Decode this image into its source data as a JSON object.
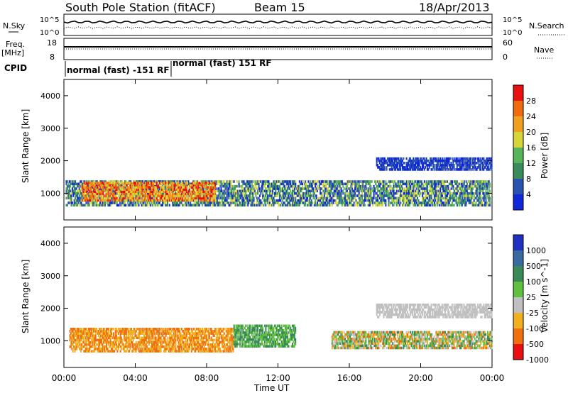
{
  "header": {
    "title": "South Pole Station (fitACF)",
    "beam": "Beam 15",
    "date": "18/Apr/2013"
  },
  "top_panels": {
    "nsky_label": "N.Sky",
    "nsearch_label": "N.Search",
    "nsky_ticks": [
      "10^5",
      "10^0"
    ],
    "nsearch_ticks": [
      "10^5",
      "10^0"
    ],
    "freq_label_1": "Freq.",
    "freq_label_2": "[MHz]",
    "freq_ticks": [
      "18",
      "8"
    ],
    "nave_label": "Nave",
    "nave_ticks": [
      "60",
      "0"
    ],
    "cpid_label": "CPID",
    "cpid_segments": [
      "normal (fast) -151 RF",
      "normal (fast) 151 RF"
    ]
  },
  "chart_data": [
    {
      "type": "heatmap",
      "name": "power",
      "ylabel": "Slant Range [km]",
      "ylim": [
        180,
        4500
      ],
      "yticks": [
        "1000",
        "2000",
        "3000",
        "4000"
      ],
      "xlim": [
        0,
        24
      ],
      "colorbar_label": "Power [dB]",
      "colorbar_ticks": [
        "4",
        "8",
        "12",
        "16",
        "20",
        "24",
        "28"
      ],
      "colorbar_colors": [
        "#1028d8",
        "#2a53b0",
        "#3b8a5c",
        "#58b45a",
        "#d6d63a",
        "#f0a020",
        "#f06a10",
        "#e81010"
      ],
      "regions": [
        {
          "x": [
            0.1,
            23.9
          ],
          "y": [
            600,
            1400
          ],
          "level": "low-to-mid power band"
        },
        {
          "x": [
            1.0,
            8.5
          ],
          "y": [
            750,
            1350
          ],
          "level": "high power (20–30 dB)"
        },
        {
          "x": [
            17.5,
            24.0
          ],
          "y": [
            1700,
            2100
          ],
          "level": "low power (4–8 dB)"
        }
      ]
    },
    {
      "type": "heatmap",
      "name": "velocity",
      "ylabel": "Slant Range [km]",
      "ylim": [
        180,
        4500
      ],
      "yticks": [
        "1000",
        "2000",
        "3000",
        "4000"
      ],
      "xlim": [
        0,
        24
      ],
      "colorbar_label": "Velocity [m s^-1]",
      "colorbar_ticks": [
        "1000",
        "500",
        "100",
        "25",
        "-25",
        "-100",
        "-500",
        "-1000"
      ],
      "colorbar_colors": [
        "#2030c0",
        "#3a6aa0",
        "#3a8a58",
        "#60c040",
        "#c0c0c0",
        "#f0b020",
        "#f07010",
        "#e81010"
      ],
      "regions": [
        {
          "x": [
            0.3,
            9.5
          ],
          "y": [
            650,
            1400
          ],
          "level": "negative velocities (orange, -100 to -500)"
        },
        {
          "x": [
            9.5,
            13.0
          ],
          "y": [
            800,
            1500
          ],
          "level": "positive velocities (green, 100–500)"
        },
        {
          "x": [
            15.0,
            24.0
          ],
          "y": [
            750,
            1300
          ],
          "level": "mixed, mostly orange"
        },
        {
          "x": [
            17.5,
            24.0
          ],
          "y": [
            1700,
            2150
          ],
          "level": "near zero (grey)"
        }
      ]
    }
  ],
  "x_axis": {
    "ticks": [
      "00:00",
      "04:00",
      "08:00",
      "12:00",
      "16:00",
      "20:00",
      "00:00"
    ],
    "label": "Time UT"
  }
}
